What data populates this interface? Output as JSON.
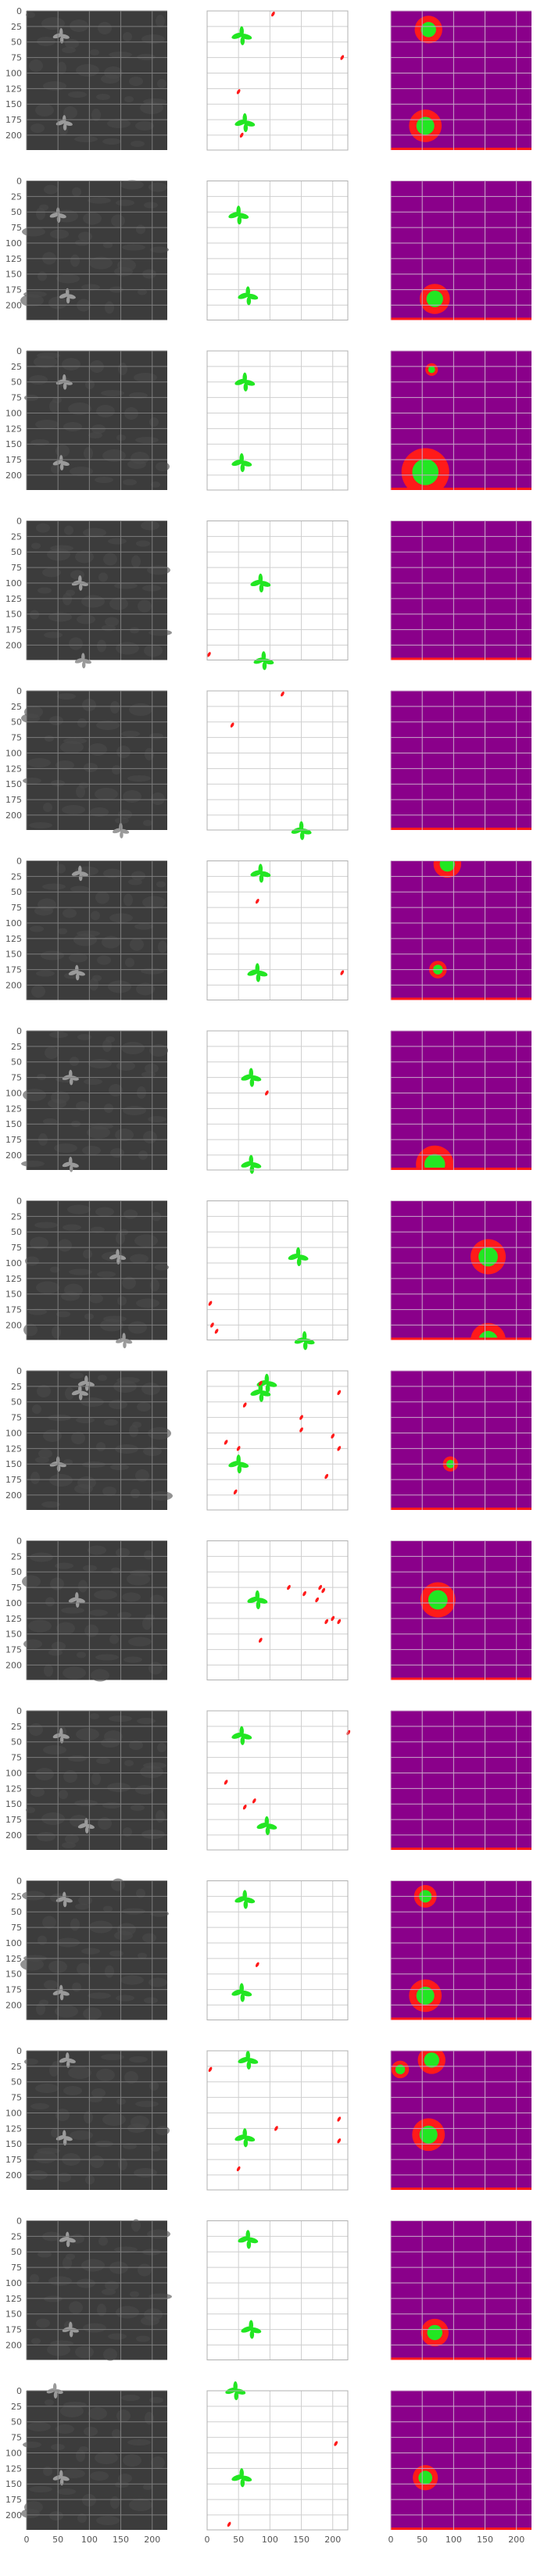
{
  "figure": {
    "columns": [
      "grayscale-image",
      "segmentation-mask",
      "heatmap"
    ],
    "colors": {
      "gray_panel": "#3c3c3c",
      "gray_panel_alt": "#4a4a4a",
      "mask_bg": "#ffffff",
      "plant": "#22e622",
      "weed": "#ff1a1a",
      "heat_bg": "#8a008a",
      "grid": "#cfcfcf",
      "frame": "#b0b0b0"
    }
  },
  "chart_data": {
    "type": "heatmap",
    "axes": {
      "x_ticks": [
        0,
        50,
        100,
        150,
        200
      ],
      "y_ticks": [
        0,
        25,
        50,
        75,
        100,
        125,
        150,
        175,
        200
      ],
      "xlim": [
        0,
        224
      ],
      "ylim": [
        224,
        0
      ],
      "x_ticks_on_last_row_only": true,
      "y_ticks_on_first_column_only": true,
      "grid": true
    },
    "rows": [
      {
        "plants": [
          [
            55,
            40
          ],
          [
            60,
            180
          ]
        ],
        "weeds": [
          [
            105,
            5
          ],
          [
            215,
            75
          ],
          [
            50,
            130
          ],
          [
            55,
            200
          ]
        ],
        "heat": [
          [
            60,
            30,
            22
          ],
          [
            55,
            185,
            26
          ]
        ]
      },
      {
        "plants": [
          [
            50,
            55
          ],
          [
            65,
            185
          ]
        ],
        "weeds": [],
        "heat": [
          [
            70,
            190,
            24
          ]
        ]
      },
      {
        "plants": [
          [
            60,
            50
          ],
          [
            55,
            180
          ]
        ],
        "weeds": [],
        "heat": [
          [
            65,
            30,
            10
          ],
          [
            55,
            195,
            38
          ]
        ]
      },
      {
        "plants": [
          [
            85,
            100
          ],
          [
            90,
            225
          ]
        ],
        "weeds": [
          [
            3,
            215
          ]
        ],
        "heat": []
      },
      {
        "plants": [
          [
            150,
            225
          ]
        ],
        "weeds": [
          [
            120,
            5
          ],
          [
            40,
            55
          ]
        ],
        "heat": []
      },
      {
        "plants": [
          [
            85,
            20
          ],
          [
            80,
            180
          ]
        ],
        "weeds": [
          [
            80,
            65
          ],
          [
            215,
            180
          ]
        ],
        "heat": [
          [
            90,
            5,
            22
          ],
          [
            75,
            175,
            14
          ]
        ]
      },
      {
        "plants": [
          [
            70,
            75
          ],
          [
            70,
            215
          ]
        ],
        "weeds": [
          [
            95,
            100
          ]
        ],
        "heat": [
          [
            70,
            215,
            30
          ]
        ]
      },
      {
        "plants": [
          [
            145,
            90
          ],
          [
            155,
            225
          ]
        ],
        "weeds": [
          [
            5,
            165
          ],
          [
            8,
            200
          ],
          [
            15,
            210
          ]
        ],
        "heat": [
          [
            155,
            90,
            28
          ],
          [
            155,
            225,
            28
          ]
        ]
      },
      {
        "plants": [
          [
            95,
            20
          ],
          [
            85,
            35
          ],
          [
            50,
            150
          ]
        ],
        "weeds": [
          [
            60,
            55
          ],
          [
            150,
            75
          ],
          [
            150,
            95
          ],
          [
            210,
            35
          ],
          [
            200,
            105
          ],
          [
            210,
            125
          ],
          [
            190,
            170
          ],
          [
            30,
            115
          ],
          [
            50,
            125
          ],
          [
            85,
            20
          ],
          [
            45,
            195
          ]
        ],
        "heat": [
          [
            95,
            150,
            12
          ]
        ]
      },
      {
        "plants": [
          [
            80,
            95
          ]
        ],
        "weeds": [
          [
            130,
            75
          ],
          [
            155,
            85
          ],
          [
            175,
            95
          ],
          [
            185,
            80
          ],
          [
            200,
            125
          ],
          [
            190,
            130
          ],
          [
            85,
            160
          ],
          [
            210,
            130
          ],
          [
            180,
            75
          ]
        ],
        "heat": [
          [
            75,
            95,
            28
          ]
        ]
      },
      {
        "plants": [
          [
            55,
            40
          ],
          [
            95,
            185
          ]
        ],
        "weeds": [
          [
            225,
            35
          ],
          [
            30,
            115
          ],
          [
            75,
            145
          ],
          [
            60,
            155
          ]
        ],
        "heat": []
      },
      {
        "plants": [
          [
            60,
            30
          ],
          [
            55,
            180
          ]
        ],
        "weeds": [
          [
            80,
            135
          ]
        ],
        "heat": [
          [
            55,
            25,
            18
          ],
          [
            55,
            185,
            26
          ]
        ]
      },
      {
        "plants": [
          [
            65,
            15
          ],
          [
            60,
            140
          ]
        ],
        "weeds": [
          [
            5,
            30
          ],
          [
            210,
            110
          ],
          [
            110,
            125
          ],
          [
            210,
            145
          ],
          [
            50,
            190
          ]
        ],
        "heat": [
          [
            65,
            15,
            22
          ],
          [
            15,
            30,
            14
          ],
          [
            60,
            135,
            26
          ]
        ]
      },
      {
        "plants": [
          [
            65,
            30
          ],
          [
            70,
            175
          ]
        ],
        "weeds": [],
        "heat": [
          [
            70,
            180,
            22
          ]
        ]
      },
      {
        "plants": [
          [
            45,
            0
          ],
          [
            55,
            140
          ]
        ],
        "weeds": [
          [
            205,
            85
          ],
          [
            35,
            215
          ]
        ],
        "heat": [
          [
            55,
            140,
            20
          ]
        ]
      }
    ]
  }
}
